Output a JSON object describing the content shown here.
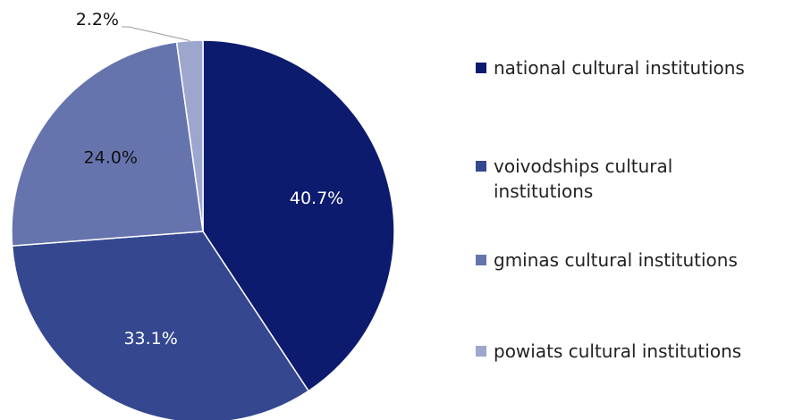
{
  "chart_data": {
    "type": "pie",
    "categories": [
      "national cultural institutions",
      "voivodships cultural institutions",
      "gminas cultural institutions",
      "powiats cultural institutions"
    ],
    "values": [
      40.7,
      33.1,
      24.0,
      2.2
    ],
    "labels": [
      "40.7%",
      "33.1%",
      "24.0%",
      "2.2%"
    ],
    "colors": [
      "#0d1b6e",
      "#34478f",
      "#6674ae",
      "#9da7cd"
    ],
    "label_colors": [
      "#ffffff",
      "#ffffff",
      "#111111",
      "#111111"
    ],
    "title": "",
    "legend_position": "right"
  }
}
